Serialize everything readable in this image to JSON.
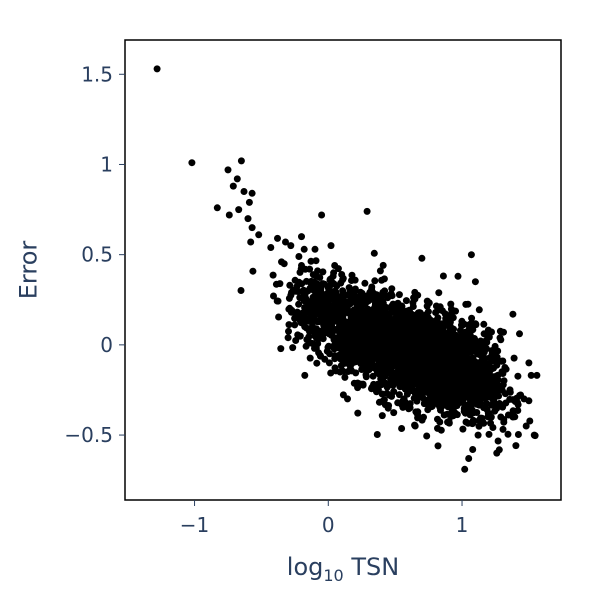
{
  "chart_data": {
    "type": "scatter",
    "title": "",
    "xlabel": {
      "base": "log",
      "subscript": "10",
      "rest": " TSN"
    },
    "ylabel": "Error",
    "xlim": [
      -1.52,
      1.74
    ],
    "ylim": [
      -0.86,
      1.69
    ],
    "x_ticks": [
      {
        "value": -1,
        "label": "−1"
      },
      {
        "value": 0,
        "label": "0"
      },
      {
        "value": 1,
        "label": "1"
      }
    ],
    "y_ticks": [
      {
        "value": -0.5,
        "label": "−0.5"
      },
      {
        "value": 0,
        "label": "0"
      },
      {
        "value": 0.5,
        "label": "0.5"
      },
      {
        "value": 1,
        "label": "1"
      },
      {
        "value": 1.5,
        "label": "1.5"
      }
    ],
    "grid": false,
    "legend": "none",
    "marker_color": "#000000",
    "series": [
      {
        "points": [
          [
            -1.28,
            1.53
          ],
          [
            -1.02,
            1.01
          ],
          [
            -0.65,
            1.02
          ],
          [
            -0.75,
            0.97
          ],
          [
            -0.68,
            0.92
          ],
          [
            -0.71,
            0.88
          ],
          [
            -0.63,
            0.85
          ],
          [
            -0.57,
            0.84
          ],
          [
            -0.59,
            0.79
          ],
          [
            -0.83,
            0.76
          ],
          [
            -0.67,
            0.75
          ],
          [
            -0.74,
            0.72
          ],
          [
            -0.6,
            0.7
          ],
          [
            -0.57,
            0.65
          ],
          [
            -0.52,
            0.61
          ],
          [
            -0.58,
            0.57
          ],
          [
            -0.43,
            0.54
          ],
          [
            -0.38,
            0.59
          ],
          [
            -0.32,
            0.57
          ],
          [
            -0.28,
            0.55
          ],
          [
            -0.2,
            0.6
          ],
          [
            -0.18,
            0.53
          ],
          [
            -0.22,
            0.49
          ],
          [
            -0.35,
            0.46
          ],
          [
            -0.33,
            0.45
          ],
          [
            -0.05,
            0.72
          ],
          [
            0.29,
            0.74
          ],
          [
            0.02,
            0.55
          ],
          [
            -0.2,
            0.44
          ],
          [
            -0.14,
            0.42
          ],
          [
            -0.08,
            0.41
          ],
          [
            0.1,
            0.39
          ],
          [
            0.39,
            0.41
          ],
          [
            0.7,
            0.48
          ],
          [
            1.07,
            0.5
          ],
          [
            0.97,
            0.38
          ],
          [
            1.1,
            0.35
          ],
          [
            -0.14,
            0.13
          ],
          [
            1.38,
            0.17
          ],
          [
            1.31,
            0.07
          ],
          [
            1.5,
            -0.1
          ],
          [
            1.48,
            -0.45
          ],
          [
            1.54,
            -0.5
          ],
          [
            1.29,
            -0.4
          ],
          [
            1.38,
            -0.4
          ],
          [
            1.2,
            -0.38
          ],
          [
            1.12,
            -0.5
          ],
          [
            1.08,
            -0.58
          ],
          [
            1.05,
            -0.63
          ],
          [
            1.02,
            -0.69
          ],
          [
            1.26,
            -0.6
          ],
          [
            0.82,
            -0.56
          ],
          [
            0.65,
            -0.45
          ]
        ],
        "dense_regions": [
          {
            "center": [
              0.55,
              -0.02
            ],
            "spread": [
              0.32,
              0.13
            ],
            "count": 1500
          },
          {
            "center": [
              0.78,
              -0.1
            ],
            "spread": [
              0.22,
              0.14
            ],
            "count": 900
          },
          {
            "center": [
              0.2,
              0.1
            ],
            "spread": [
              0.2,
              0.1
            ],
            "count": 350
          },
          {
            "center": [
              -0.05,
              0.22
            ],
            "spread": [
              0.12,
              0.09
            ],
            "count": 120
          },
          {
            "center": [
              1.1,
              -0.15
            ],
            "spread": [
              0.14,
              0.14
            ],
            "count": 200
          }
        ]
      }
    ]
  }
}
